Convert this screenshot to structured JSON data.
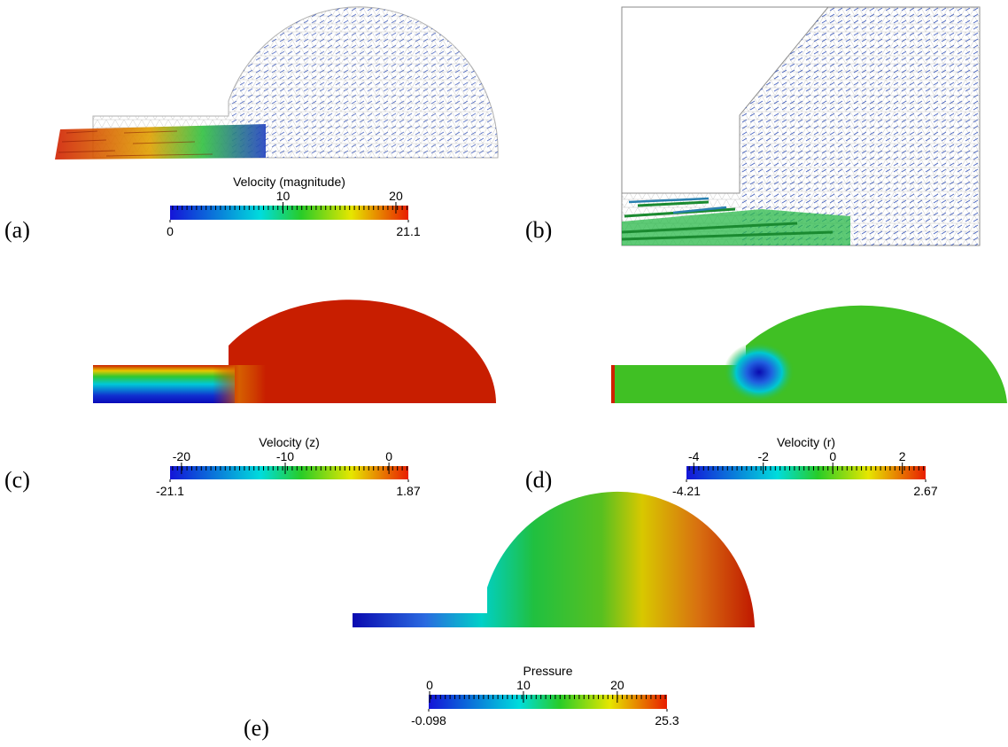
{
  "figure": {
    "panels": [
      {
        "label": "(a)",
        "colorbar": {
          "title": "Velocity (magnitude)",
          "range": [
            0,
            21.1
          ],
          "ticks": [
            10,
            20
          ]
        }
      },
      {
        "label": "(b)"
      },
      {
        "label": "(c)",
        "colorbar": {
          "title": "Velocity (z)",
          "range": [
            -21.1,
            1.87
          ],
          "ticks": [
            -20,
            -10,
            0
          ]
        }
      },
      {
        "label": "(d)",
        "colorbar": {
          "title": "Velocity (r)",
          "range": [
            -4.21,
            2.67
          ],
          "ticks": [
            -4,
            -2,
            0,
            2
          ]
        }
      },
      {
        "label": "(e)",
        "colorbar": {
          "title": "Pressure",
          "range": [
            -0.098,
            25.3
          ],
          "ticks": [
            0,
            10,
            20
          ]
        }
      }
    ]
  }
}
